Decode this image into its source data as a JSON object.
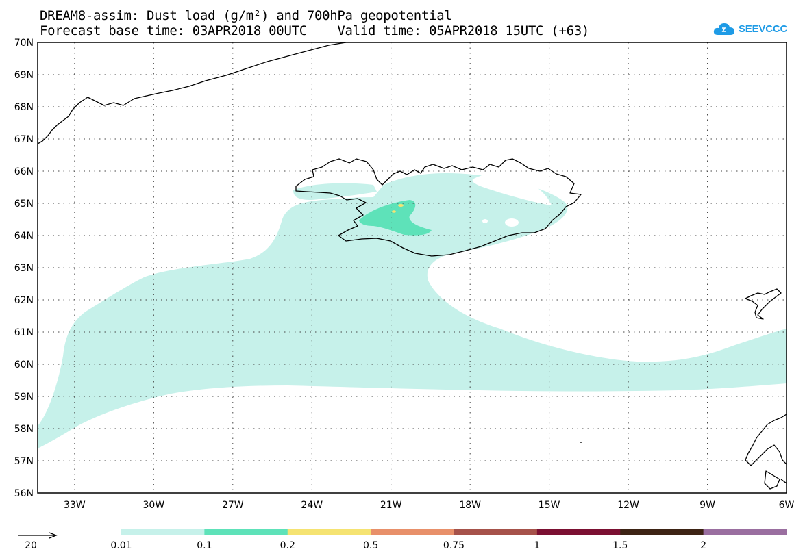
{
  "header": {
    "title_line1": "DREAM8-assim: Dust load (g/m²) and 700hPa geopotential",
    "title_line2": "Forecast base time: 03APR2018 00UTC    Valid time: 05APR2018 15UTC (+63)"
  },
  "logo": {
    "text": "SEEVCCC",
    "icon": "cloud-icon"
  },
  "map": {
    "lat_labels": [
      "56N",
      "57N",
      "58N",
      "59N",
      "60N",
      "61N",
      "62N",
      "63N",
      "64N",
      "65N",
      "66N",
      "67N",
      "68N",
      "69N",
      "70N"
    ],
    "lon_labels": [
      "33W",
      "30W",
      "27W",
      "24W",
      "21W",
      "18W",
      "15W",
      "12W",
      "9W",
      "6W"
    ],
    "lat_range": [
      56,
      70
    ],
    "lon_range": [
      -34.4,
      -6
    ],
    "grid": "dotted"
  },
  "legend": {
    "vector_scale": "20",
    "labels": [
      "0.01",
      "0.1",
      "0.2",
      "0.5",
      "0.75",
      "1",
      "1.5",
      "2"
    ],
    "colors": [
      "#c6f1ea",
      "#5ee2b9",
      "#f5e372",
      "#e8906a",
      "#a6524a",
      "#7b1032",
      "#3d2314",
      "#9a6fa0"
    ]
  }
}
